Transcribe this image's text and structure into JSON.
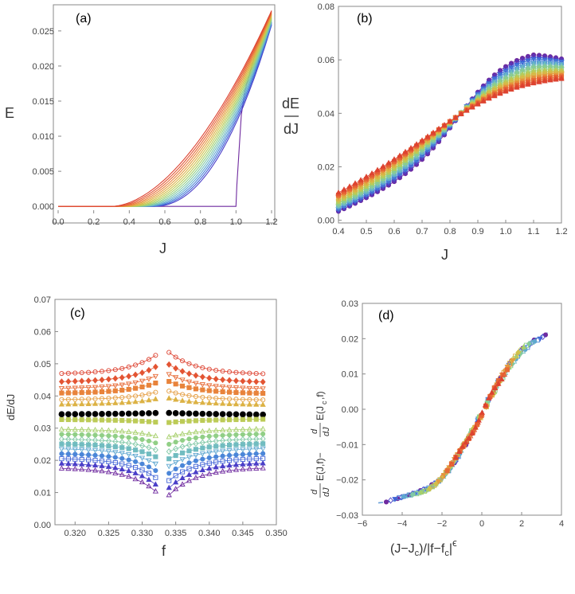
{
  "chart_data": [
    {
      "id": "a",
      "type": "line",
      "panel_label": "(a)",
      "xlabel": "J",
      "ylabel": "E",
      "xlim": [
        0.0,
        1.2
      ],
      "ylim": [
        -0.001,
        0.0285
      ],
      "xticks": [
        0.0,
        0.2,
        0.4,
        0.6,
        0.8,
        1.0,
        1.2
      ],
      "yticks": [
        0.0,
        0.005,
        0.01,
        0.015,
        0.02,
        0.025
      ],
      "xtick_labels": [
        "0.0",
        "0.2",
        "0.4",
        "0.6",
        "0.8",
        "1.0",
        "1.2"
      ],
      "ytick_labels": [
        "0.000",
        "0.005",
        "0.010",
        "0.015",
        "0.020",
        "0.025"
      ],
      "series_count": 17,
      "series_colors": [
        "#6f2a9f",
        "#4a3fc8",
        "#3f63d6",
        "#4b86d8",
        "#5ea7d0",
        "#71bcc0",
        "#80c8a6",
        "#91cf86",
        "#a6cf6a",
        "#bccb57",
        "#cfc24c",
        "#dcb244",
        "#e49c3f",
        "#e8833b",
        "#e76a36",
        "#e35433",
        "#dd4331"
      ]
    },
    {
      "id": "b",
      "type": "scatter",
      "panel_label": "(b)",
      "xlabel": "J",
      "ylabel_top": "dE",
      "ylabel_bottom": "dJ",
      "xlim": [
        0.4,
        1.2
      ],
      "ylim": [
        -0.001,
        0.08
      ],
      "xticks": [
        0.4,
        0.5,
        0.6,
        0.7,
        0.8,
        0.9,
        1.0,
        1.1,
        1.2
      ],
      "yticks": [
        0.0,
        0.02,
        0.04,
        0.06,
        0.08
      ],
      "xtick_labels": [
        "0.4",
        "0.5",
        "0.6",
        "0.7",
        "0.8",
        "0.9",
        "1.0",
        "1.1",
        "1.2"
      ],
      "ytick_labels": [
        "0.00",
        "0.02",
        "0.04",
        "0.06",
        "0.08"
      ],
      "series_count": 17
    },
    {
      "id": "c",
      "type": "scatter",
      "panel_label": "(c)",
      "xlabel": "f",
      "ylabel": "dE/dJ",
      "xlim": [
        0.317,
        0.35
      ],
      "ylim": [
        0.0,
        0.07
      ],
      "xticks": [
        0.32,
        0.325,
        0.33,
        0.335,
        0.34,
        0.345,
        0.35
      ],
      "yticks": [
        0.0,
        0.01,
        0.02,
        0.03,
        0.04,
        0.05,
        0.06,
        0.07
      ],
      "xtick_labels": [
        "0.320",
        "0.325",
        "0.330",
        "0.335",
        "0.340",
        "0.345",
        "0.350"
      ],
      "ytick_labels": [
        "0.00",
        "0.01",
        "0.02",
        "0.03",
        "0.04",
        "0.05",
        "0.06",
        "0.07"
      ],
      "fc": 0.3333,
      "black_series_level": 0.0345,
      "levels_top_to_bottom": [
        0.047,
        0.0445,
        0.0425,
        0.041,
        0.039,
        0.0375,
        0.0345,
        0.0325,
        0.0295,
        0.028,
        0.0265,
        0.025,
        0.0235,
        0.022,
        0.0205,
        0.019,
        0.0175
      ]
    },
    {
      "id": "d",
      "type": "scatter",
      "panel_label": "(d)",
      "xlabel": "(J−J",
      "xlabel_sub": "c",
      "xlabel_mid": ")/|f−f",
      "xlabel_sub2": "c",
      "xlabel_end": "|",
      "xlabel_exp": "ϵ",
      "ylabel_parts": [
        "d",
        "dJ",
        "E(J,f)−",
        "d",
        "dJ",
        "E(J",
        "c",
        ",f)"
      ],
      "xlim": [
        -6,
        4
      ],
      "ylim": [
        -0.03,
        0.03
      ],
      "xticks": [
        -6,
        -4,
        -2,
        0,
        2,
        4
      ],
      "yticks": [
        -0.03,
        -0.02,
        -0.01,
        0.0,
        0.01,
        0.02,
        0.03
      ],
      "xtick_labels": [
        "−6",
        "−4",
        "−2",
        "0",
        "2",
        "4"
      ],
      "ytick_labels": [
        "−0.03",
        "−0.02",
        "−0.01",
        "0.00",
        "0.01",
        "0.02",
        "0.03"
      ],
      "fit_curve_color": "#6aa0d8"
    }
  ]
}
